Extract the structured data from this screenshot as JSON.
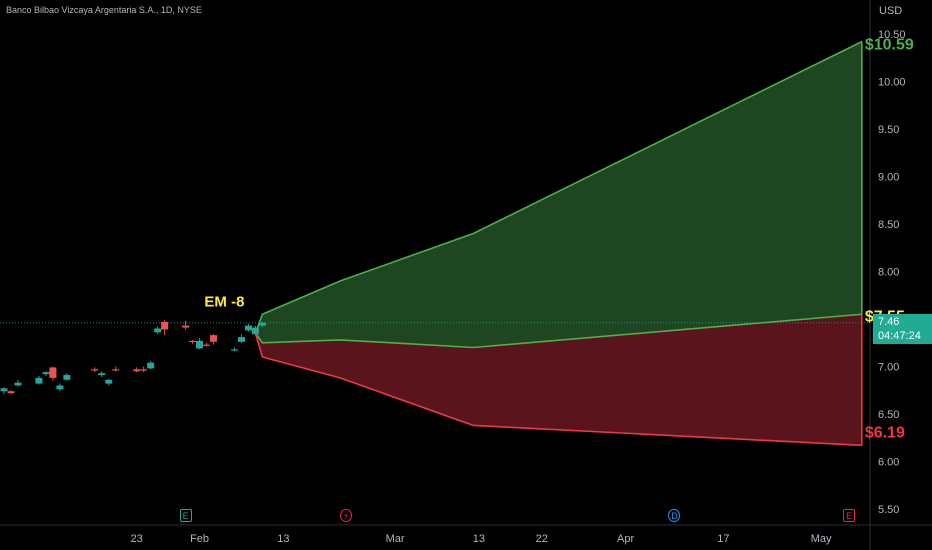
{
  "header": {
    "instrument": "Banco Bilbao Vizcaya Argentaria S.A., 1D, NYSE",
    "currency": "USD"
  },
  "price_badge": {
    "price": "7.46",
    "countdown": "04:47:24"
  },
  "annotations": {
    "em_label": "EM -8",
    "upper_target": "$10.59",
    "mid_target": "$7.55",
    "lower_target": "$6.19"
  },
  "events": [
    {
      "icon": "earnings-icon",
      "glyph": "E",
      "color": "#26a69a",
      "day": 26
    },
    {
      "icon": "split-icon",
      "glyph": "⚡",
      "color": "#e91e63",
      "day": 49
    },
    {
      "icon": "dividend-icon",
      "glyph": "D",
      "color": "#2196f3",
      "day": 96
    },
    {
      "icon": "earnings-icon",
      "glyph": "E",
      "color": "#e91e63",
      "day": 121
    }
  ],
  "colors": {
    "up": "#26a69a",
    "down": "#ef5350",
    "upper_band_fill": "#1e4620",
    "upper_band_line": "#4caf50",
    "lower_band_fill": "#5a151c",
    "lower_band_line": "#f23645",
    "label_yellow": "#ffeb3b",
    "label_green": "#4caf50",
    "label_red": "#f23645",
    "axis_text": "#b2b5be"
  },
  "chart_data": {
    "type": "candlestick",
    "ylim": [
      5.3,
      10.8
    ],
    "yticks": [
      5.5,
      6.0,
      6.5,
      7.0,
      7.5,
      8.0,
      8.5,
      9.0,
      9.5,
      10.0,
      10.5
    ],
    "ytick_labels": [
      "5.50",
      "6.00",
      "6.50",
      "7.00",
      "7.50",
      "8.00",
      "8.50",
      "9.00",
      "9.50",
      "10.00",
      "10.50"
    ],
    "x_axis": {
      "start_date": "2023-01-04",
      "end_date": "2023-05-10",
      "tick_labels": [
        {
          "date": "2023-01-23",
          "label": "23"
        },
        {
          "date": "2023-02-01",
          "label": "Feb"
        },
        {
          "date": "2023-02-13",
          "label": "13"
        },
        {
          "date": "2023-03-01",
          "label": "Mar"
        },
        {
          "date": "2023-03-13",
          "label": "13"
        },
        {
          "date": "2023-03-22",
          "label": "22"
        },
        {
          "date": "2023-04-03",
          "label": "Apr"
        },
        {
          "date": "2023-04-17",
          "label": "17"
        },
        {
          "date": "2023-05-01",
          "label": "May"
        }
      ]
    },
    "candles": [
      {
        "o": 6.74,
        "h": 6.78,
        "l": 6.71,
        "c": 6.77
      },
      {
        "o": 6.74,
        "h": 6.75,
        "l": 6.71,
        "c": 6.72
      },
      {
        "o": 6.8,
        "h": 6.86,
        "l": 6.79,
        "c": 6.83
      },
      {
        "o": 6.82,
        "h": 6.9,
        "l": 6.81,
        "c": 6.88
      },
      {
        "o": 6.92,
        "h": 6.95,
        "l": 6.9,
        "c": 6.94
      },
      {
        "o": 6.99,
        "h": 7.0,
        "l": 6.85,
        "c": 6.88
      },
      {
        "o": 6.76,
        "h": 6.82,
        "l": 6.74,
        "c": 6.8
      },
      {
        "o": 6.86,
        "h": 6.93,
        "l": 6.85,
        "c": 6.91
      },
      {
        "o": 6.97,
        "h": 6.99,
        "l": 6.94,
        "c": 6.96
      },
      {
        "o": 6.91,
        "h": 6.95,
        "l": 6.89,
        "c": 6.93
      },
      {
        "o": 6.82,
        "h": 6.87,
        "l": 6.8,
        "c": 6.86
      },
      {
        "o": 6.97,
        "h": 7.0,
        "l": 6.95,
        "c": 6.96
      },
      {
        "o": 6.97,
        "h": 6.99,
        "l": 6.94,
        "c": 6.95
      },
      {
        "o": 6.97,
        "h": 7.0,
        "l": 6.94,
        "c": 6.96
      },
      {
        "o": 6.98,
        "h": 7.06,
        "l": 6.97,
        "c": 7.04
      },
      {
        "o": 7.36,
        "h": 7.42,
        "l": 7.34,
        "c": 7.4
      },
      {
        "o": 7.47,
        "h": 7.49,
        "l": 7.33,
        "c": 7.39
      },
      {
        "o": 7.43,
        "h": 7.48,
        "l": 7.39,
        "c": 7.41
      },
      {
        "o": 7.27,
        "h": 7.28,
        "l": 7.24,
        "c": 7.26
      },
      {
        "o": 7.19,
        "h": 7.3,
        "l": 7.18,
        "c": 7.27
      },
      {
        "o": 7.23,
        "h": 7.25,
        "l": 7.21,
        "c": 7.22
      },
      {
        "o": 7.33,
        "h": 7.34,
        "l": 7.23,
        "c": 7.26
      },
      {
        "o": 7.17,
        "h": 7.2,
        "l": 7.16,
        "c": 7.18
      },
      {
        "o": 7.26,
        "h": 7.34,
        "l": 7.25,
        "c": 7.31
      },
      {
        "o": 7.38,
        "h": 7.45,
        "l": 7.37,
        "c": 7.43
      },
      {
        "o": 7.34,
        "h": 7.43,
        "l": 7.33,
        "c": 7.41
      },
      {
        "o": 7.43,
        "h": 7.47,
        "l": 7.42,
        "c": 7.46
      }
    ],
    "candle_dates": [
      "2023-01-04",
      "2023-01-05",
      "2023-01-06",
      "2023-01-09",
      "2023-01-10",
      "2023-01-11",
      "2023-01-12",
      "2023-01-13",
      "2023-01-17",
      "2023-01-18",
      "2023-01-19",
      "2023-01-20",
      "2023-01-23",
      "2023-01-24",
      "2023-01-25",
      "2023-01-26",
      "2023-01-27",
      "2023-01-30",
      "2023-01-31",
      "2023-02-01",
      "2023-02-02",
      "2023-02-03",
      "2023-02-06",
      "2023-02-07",
      "2023-02-08",
      "2023-02-09",
      "2023-02-10"
    ],
    "last_price": 7.46,
    "upper_band": {
      "name": "",
      "upper": [
        [
          25,
          7.35
        ],
        [
          26,
          7.55
        ],
        [
          33,
          7.9
        ],
        [
          45,
          8.4
        ],
        [
          80,
          10.42
        ]
      ],
      "lower": [
        [
          25,
          7.35
        ],
        [
          26,
          7.25
        ],
        [
          33,
          7.28
        ],
        [
          45,
          7.2
        ],
        [
          80,
          7.55
        ]
      ]
    },
    "lower_band": {
      "name": "",
      "upper": [
        [
          25,
          7.35
        ],
        [
          26,
          7.25
        ],
        [
          33,
          7.28
        ],
        [
          45,
          7.2
        ],
        [
          80,
          7.55
        ]
      ],
      "lower": [
        [
          25,
          7.35
        ],
        [
          26,
          7.1
        ],
        [
          33,
          6.88
        ],
        [
          45,
          6.38
        ],
        [
          80,
          6.17
        ]
      ]
    }
  }
}
